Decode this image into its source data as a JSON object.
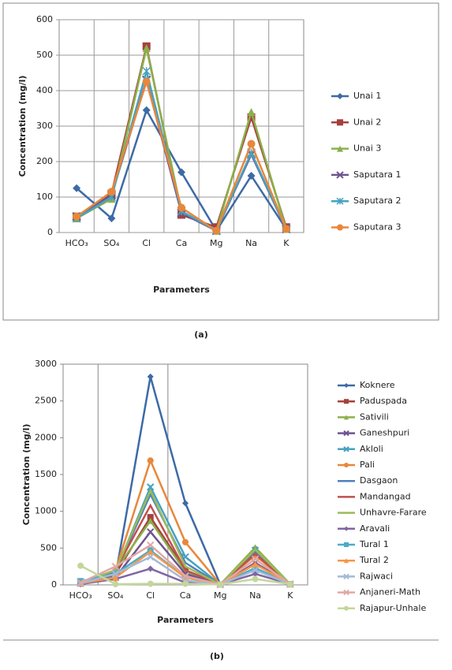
{
  "chart_data": [
    {
      "type": "line",
      "caption": "(a)",
      "y_label": "Concentration (mg/l)",
      "x_label": "Parameters",
      "categories": [
        "HCO₃",
        "SO₄",
        "Cl",
        "Ca",
        "Mg",
        "Na",
        "K"
      ],
      "ylim": [
        0,
        600
      ],
      "yticks": [
        0,
        100,
        200,
        300,
        400,
        500,
        600
      ],
      "grid": true,
      "series": [
        {
          "name": "Unai 1",
          "color": "#3d6aa6",
          "marker": "diamond",
          "values": [
            125,
            40,
            345,
            170,
            5,
            160,
            10
          ]
        },
        {
          "name": "Unai 2",
          "color": "#a6403d",
          "marker": "square",
          "values": [
            45,
            110,
            525,
            50,
            15,
            325,
            15
          ]
        },
        {
          "name": "Unai 3",
          "color": "#8bb049",
          "marker": "triangle",
          "values": [
            40,
            95,
            520,
            60,
            5,
            340,
            10
          ]
        },
        {
          "name": "Saputara 1",
          "color": "#6f548f",
          "marker": "x",
          "values": [
            45,
            105,
            430,
            55,
            5,
            220,
            10
          ]
        },
        {
          "name": "Saputara 2",
          "color": "#47a2c0",
          "marker": "star",
          "values": [
            40,
            100,
            455,
            60,
            5,
            225,
            10
          ]
        },
        {
          "name": "Saputara 3",
          "color": "#e8873a",
          "marker": "circle",
          "values": [
            45,
            115,
            425,
            70,
            5,
            250,
            10
          ]
        }
      ]
    },
    {
      "type": "line",
      "caption": "(b)",
      "y_label": "Concentration (mg/l)",
      "x_label": "Parameters",
      "categories": [
        "HCO₃",
        "SO₄",
        "Cl",
        "Ca",
        "Mg",
        "Na",
        "K"
      ],
      "ylim": [
        0,
        3000
      ],
      "yticks": [
        0,
        500,
        1000,
        1500,
        2000,
        2500,
        3000
      ],
      "grid": false,
      "series": [
        {
          "name": "Koknere",
          "color": "#3d6aa6",
          "marker": "diamond",
          "values": [
            10,
            120,
            2830,
            1110,
            5,
            500,
            10
          ]
        },
        {
          "name": "Paduspada",
          "color": "#a6403d",
          "marker": "square",
          "values": [
            20,
            150,
            920,
            200,
            5,
            420,
            10
          ]
        },
        {
          "name": "Sativili",
          "color": "#8bb049",
          "marker": "triangle",
          "values": [
            20,
            200,
            870,
            180,
            5,
            510,
            10
          ]
        },
        {
          "name": "Ganeshpuri",
          "color": "#6f548f",
          "marker": "x",
          "values": [
            20,
            100,
            720,
            150,
            5,
            300,
            10
          ]
        },
        {
          "name": "Akloli",
          "color": "#47a2c0",
          "marker": "x",
          "values": [
            40,
            180,
            1330,
            380,
            5,
            470,
            10
          ]
        },
        {
          "name": "Pali",
          "color": "#e8873a",
          "marker": "circle",
          "values": [
            30,
            200,
            1690,
            580,
            5,
            400,
            10
          ]
        },
        {
          "name": "Dasgaon",
          "color": "#4f81bd",
          "marker": "none",
          "values": [
            30,
            180,
            1230,
            300,
            5,
            450,
            10
          ]
        },
        {
          "name": "Mandangad",
          "color": "#c0504d",
          "marker": "none",
          "values": [
            30,
            200,
            1080,
            200,
            5,
            420,
            10
          ]
        },
        {
          "name": "Unhavre-Farare",
          "color": "#9bbb59",
          "marker": "none",
          "values": [
            30,
            200,
            1280,
            250,
            5,
            480,
            10
          ]
        },
        {
          "name": "Aravali",
          "color": "#8064a2",
          "marker": "diamond",
          "values": [
            10,
            80,
            220,
            30,
            5,
            150,
            10
          ]
        },
        {
          "name": "Tural 1",
          "color": "#4bacc6",
          "marker": "square",
          "values": [
            50,
            150,
            470,
            100,
            5,
            230,
            10
          ]
        },
        {
          "name": "Tural 2",
          "color": "#f79646",
          "marker": "triangle",
          "values": [
            20,
            100,
            450,
            100,
            5,
            280,
            10
          ]
        },
        {
          "name": "Rajwaci",
          "color": "#a5b9d8",
          "marker": "x",
          "values": [
            20,
            150,
            380,
            60,
            5,
            200,
            10
          ]
        },
        {
          "name": "Anjaneri-Math",
          "color": "#e0a8a6",
          "marker": "x",
          "values": [
            30,
            250,
            540,
            120,
            5,
            350,
            10
          ]
        },
        {
          "name": "Rajapur-Unhale",
          "color": "#c3d69b",
          "marker": "circle",
          "values": [
            260,
            10,
            15,
            15,
            5,
            80,
            10
          ]
        }
      ]
    }
  ]
}
